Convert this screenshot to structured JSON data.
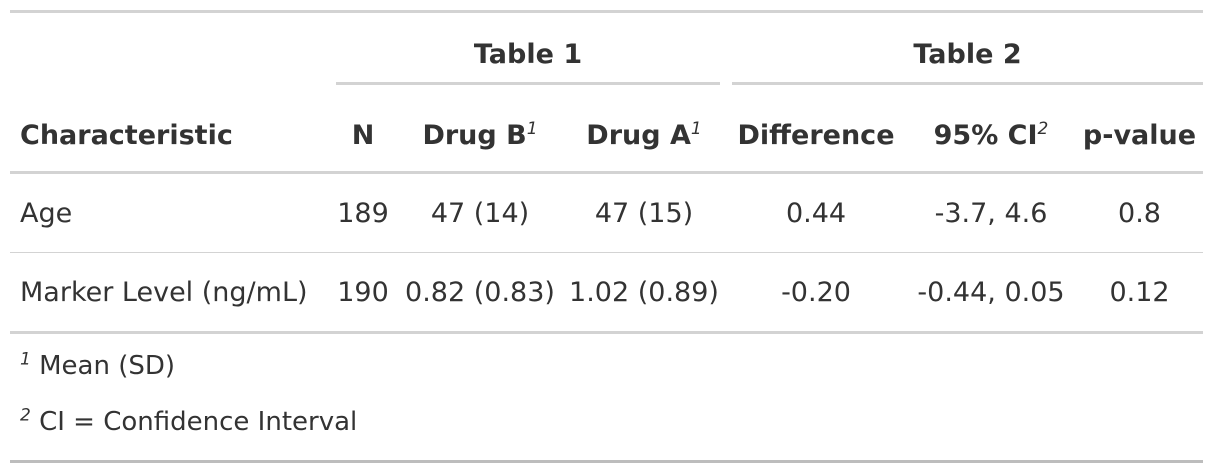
{
  "table": {
    "spanners": {
      "table1": "Table 1",
      "table2": "Table 2"
    },
    "columns": {
      "characteristic": "Characteristic",
      "n": "N",
      "drug_b": "Drug B",
      "drug_b_mark": "1",
      "drug_a": "Drug A",
      "drug_a_mark": "1",
      "difference": "Difference",
      "ci": "95% CI",
      "ci_mark": "2",
      "p_value": "p-value"
    },
    "rows": [
      {
        "characteristic": "Age",
        "n": "189",
        "drug_b": "47 (14)",
        "drug_a": "47 (15)",
        "difference": "0.44",
        "ci": "-3.7, 4.6",
        "p_value": "0.8"
      },
      {
        "characteristic": "Marker Level (ng/mL)",
        "n": "190",
        "drug_b": "0.82 (0.83)",
        "drug_a": "1.02 (0.89)",
        "difference": "-0.20",
        "ci": "-0.44, 0.05",
        "p_value": "0.12"
      }
    ],
    "footnotes": [
      {
        "mark": "1",
        "text": "Mean (SD)"
      },
      {
        "mark": "2",
        "text": "CI = Confidence Interval"
      }
    ]
  }
}
